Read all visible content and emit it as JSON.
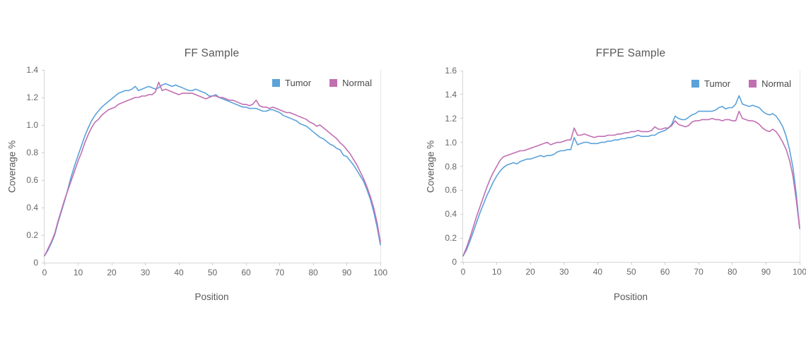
{
  "colors": {
    "tumor": "#5AA2DA",
    "normal": "#C16FB1",
    "title_text": "#595959",
    "tick_text": "#666666",
    "axis_line": "#d6d6d6"
  },
  "chart_data": [
    {
      "type": "line",
      "title": "FF Sample",
      "xlabel": "Position",
      "ylabel": "Coverage %",
      "xlim": [
        0,
        100
      ],
      "ylim": [
        0,
        1.4
      ],
      "grid": false,
      "legend_position": "top-right",
      "x_ticks": [
        "0",
        "10",
        "20",
        "30",
        "40",
        "50",
        "60",
        "70",
        "80",
        "90",
        "100"
      ],
      "y_ticks": [
        "0",
        "0.2",
        "0.4",
        "0.6",
        "0.8",
        "1.0",
        "1.2",
        "1.4"
      ],
      "x_start": 0,
      "x_step": 1,
      "series": [
        {
          "name": "Tumor",
          "color": "#5AA2DA",
          "values": [
            0.05,
            0.09,
            0.14,
            0.2,
            0.29,
            0.37,
            0.45,
            0.54,
            0.63,
            0.71,
            0.78,
            0.85,
            0.92,
            0.98,
            1.03,
            1.07,
            1.1,
            1.13,
            1.15,
            1.17,
            1.19,
            1.21,
            1.23,
            1.24,
            1.25,
            1.25,
            1.26,
            1.28,
            1.25,
            1.26,
            1.27,
            1.28,
            1.27,
            1.26,
            1.27,
            1.29,
            1.3,
            1.29,
            1.28,
            1.29,
            1.28,
            1.27,
            1.26,
            1.25,
            1.25,
            1.26,
            1.25,
            1.24,
            1.23,
            1.21,
            1.21,
            1.22,
            1.2,
            1.19,
            1.18,
            1.17,
            1.16,
            1.15,
            1.14,
            1.13,
            1.13,
            1.12,
            1.12,
            1.12,
            1.11,
            1.1,
            1.1,
            1.11,
            1.11,
            1.1,
            1.09,
            1.07,
            1.06,
            1.05,
            1.04,
            1.03,
            1.01,
            1.0,
            0.99,
            0.97,
            0.95,
            0.93,
            0.91,
            0.9,
            0.88,
            0.86,
            0.85,
            0.83,
            0.82,
            0.78,
            0.77,
            0.74,
            0.71,
            0.67,
            0.63,
            0.59,
            0.53,
            0.46,
            0.37,
            0.26,
            0.13
          ]
        },
        {
          "name": "Normal",
          "color": "#C16FB1",
          "values": [
            0.05,
            0.1,
            0.15,
            0.21,
            0.3,
            0.38,
            0.46,
            0.53,
            0.6,
            0.67,
            0.74,
            0.8,
            0.87,
            0.93,
            0.98,
            1.02,
            1.04,
            1.07,
            1.09,
            1.11,
            1.12,
            1.13,
            1.15,
            1.16,
            1.17,
            1.18,
            1.19,
            1.2,
            1.2,
            1.21,
            1.21,
            1.22,
            1.22,
            1.24,
            1.31,
            1.25,
            1.26,
            1.25,
            1.24,
            1.23,
            1.22,
            1.23,
            1.23,
            1.23,
            1.23,
            1.22,
            1.21,
            1.2,
            1.19,
            1.2,
            1.21,
            1.21,
            1.2,
            1.2,
            1.19,
            1.18,
            1.18,
            1.17,
            1.16,
            1.15,
            1.15,
            1.14,
            1.15,
            1.18,
            1.14,
            1.13,
            1.13,
            1.12,
            1.13,
            1.12,
            1.11,
            1.1,
            1.09,
            1.09,
            1.08,
            1.07,
            1.06,
            1.05,
            1.04,
            1.02,
            1.01,
            0.99,
            1.0,
            0.98,
            0.96,
            0.94,
            0.92,
            0.9,
            0.87,
            0.85,
            0.82,
            0.79,
            0.75,
            0.71,
            0.66,
            0.61,
            0.55,
            0.48,
            0.4,
            0.29,
            0.15
          ]
        }
      ]
    },
    {
      "type": "line",
      "title": "FFPE Sample",
      "xlabel": "Position",
      "ylabel": "Coverage %",
      "xlim": [
        0,
        100
      ],
      "ylim": [
        0,
        1.6
      ],
      "grid": false,
      "legend_position": "top-right",
      "x_ticks": [
        "0",
        "10",
        "20",
        "30",
        "40",
        "50",
        "60",
        "70",
        "80",
        "90",
        "100"
      ],
      "y_ticks": [
        "0",
        "0.2",
        "0.4",
        "0.6",
        "0.8",
        "1.0",
        "1.2",
        "1.4",
        "1.6"
      ],
      "x_start": 0,
      "x_step": 1,
      "series": [
        {
          "name": "Tumor",
          "color": "#5AA2DA",
          "values": [
            0.05,
            0.1,
            0.17,
            0.25,
            0.33,
            0.41,
            0.48,
            0.55,
            0.61,
            0.67,
            0.72,
            0.76,
            0.79,
            0.81,
            0.82,
            0.83,
            0.82,
            0.84,
            0.85,
            0.86,
            0.86,
            0.87,
            0.88,
            0.89,
            0.88,
            0.89,
            0.89,
            0.9,
            0.92,
            0.93,
            0.93,
            0.94,
            0.94,
            1.04,
            0.98,
            0.99,
            1.0,
            1.0,
            0.99,
            0.99,
            0.99,
            1.0,
            1.0,
            1.01,
            1.01,
            1.02,
            1.02,
            1.03,
            1.03,
            1.04,
            1.04,
            1.05,
            1.06,
            1.05,
            1.05,
            1.05,
            1.06,
            1.06,
            1.08,
            1.09,
            1.1,
            1.12,
            1.15,
            1.22,
            1.2,
            1.19,
            1.19,
            1.21,
            1.23,
            1.24,
            1.26,
            1.26,
            1.26,
            1.26,
            1.26,
            1.27,
            1.29,
            1.3,
            1.28,
            1.29,
            1.29,
            1.32,
            1.39,
            1.32,
            1.31,
            1.3,
            1.31,
            1.3,
            1.29,
            1.26,
            1.24,
            1.23,
            1.24,
            1.22,
            1.18,
            1.13,
            1.05,
            0.94,
            0.79,
            0.57,
            0.28
          ]
        },
        {
          "name": "Normal",
          "color": "#C16FB1",
          "values": [
            0.05,
            0.12,
            0.2,
            0.29,
            0.38,
            0.46,
            0.54,
            0.62,
            0.69,
            0.75,
            0.8,
            0.85,
            0.88,
            0.89,
            0.9,
            0.91,
            0.92,
            0.93,
            0.93,
            0.94,
            0.95,
            0.96,
            0.97,
            0.98,
            0.99,
            1.0,
            0.98,
            0.99,
            1.0,
            1.0,
            1.01,
            1.02,
            1.02,
            1.12,
            1.06,
            1.06,
            1.07,
            1.06,
            1.05,
            1.04,
            1.05,
            1.05,
            1.05,
            1.06,
            1.06,
            1.06,
            1.07,
            1.07,
            1.08,
            1.08,
            1.09,
            1.09,
            1.1,
            1.09,
            1.09,
            1.09,
            1.1,
            1.13,
            1.11,
            1.11,
            1.12,
            1.12,
            1.14,
            1.18,
            1.15,
            1.14,
            1.13,
            1.14,
            1.17,
            1.18,
            1.18,
            1.19,
            1.19,
            1.19,
            1.2,
            1.19,
            1.19,
            1.18,
            1.19,
            1.19,
            1.18,
            1.18,
            1.26,
            1.2,
            1.19,
            1.18,
            1.18,
            1.17,
            1.15,
            1.12,
            1.1,
            1.09,
            1.11,
            1.09,
            1.05,
            1.0,
            0.94,
            0.85,
            0.72,
            0.52,
            0.28
          ]
        }
      ]
    }
  ]
}
